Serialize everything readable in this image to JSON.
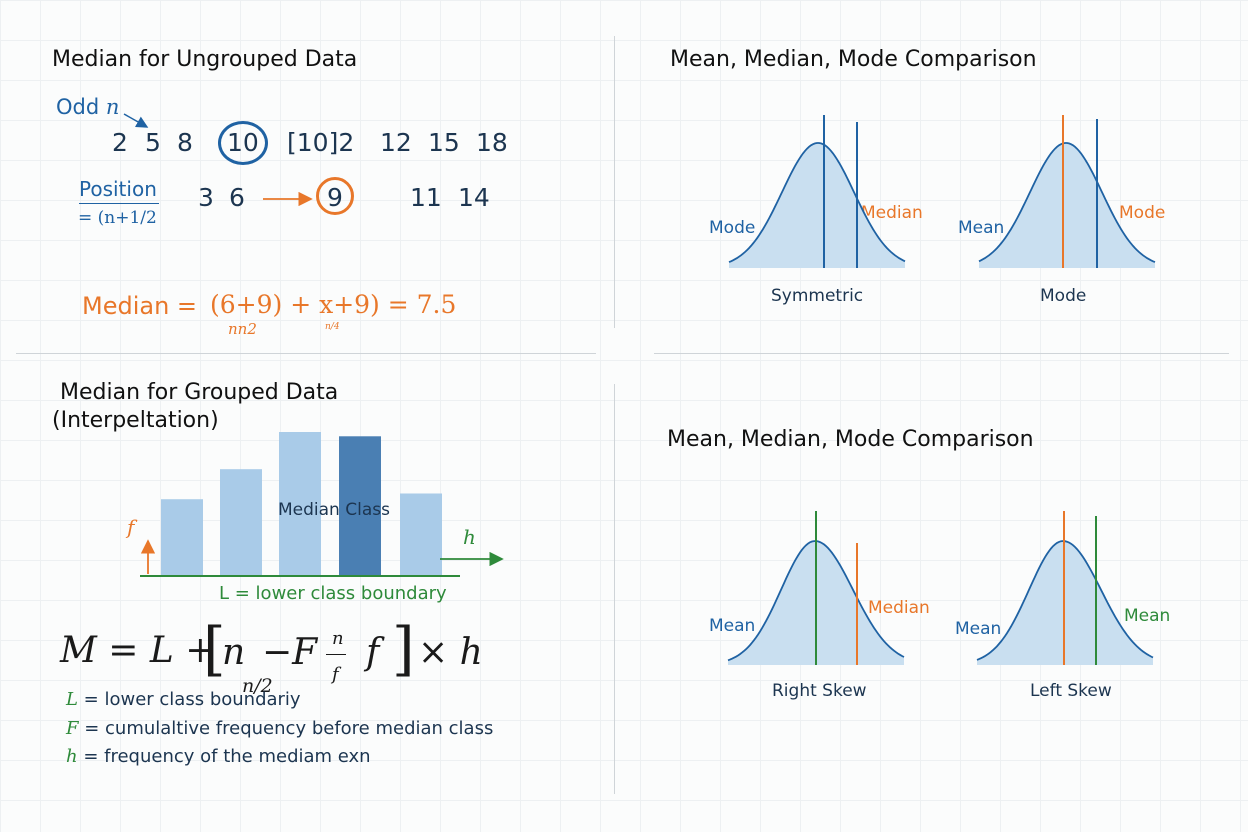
{
  "colors": {
    "blue": "#1f62a3",
    "orange": "#e8772a",
    "green": "#2e8a3a",
    "fill": "#c9dff0",
    "dark_bar": "#4a7fb3",
    "light_bar": "#a9cbe8"
  },
  "ungrouped": {
    "title": "Median for Ungrouped Data",
    "odd_label": "Odd ",
    "odd_n": "n",
    "row1": [
      "2",
      "5",
      "8",
      "10",
      "[10]2",
      "12",
      "15",
      "18"
    ],
    "position_label": "Position",
    "position_formula": "= (n+1/2",
    "row2": [
      "3",
      "6",
      "9",
      "11",
      "14"
    ],
    "median_word": "Median =",
    "median_expr": "(6+9) + x+9) = 7.5",
    "sub1": "nn2",
    "sub2": "n/4"
  },
  "grouped": {
    "title_line1": "Median for Grouped Data",
    "title_line2": "(Interpeltation)",
    "median_class_label": "Median Class",
    "f_label": "f",
    "h_label": "h",
    "lower_boundary_caption": "L = lower class boundary",
    "bars": [
      {
        "height": 0.53,
        "highlight": false
      },
      {
        "height": 0.74,
        "highlight": false
      },
      {
        "height": 1.0,
        "highlight": false
      },
      {
        "height": 0.97,
        "highlight": true
      },
      {
        "height": 0.57,
        "highlight": false
      }
    ],
    "formula": {
      "lhs": "M = L + ",
      "bracket_open": "[",
      "n": "n",
      "n_half": "n/2",
      "minus_F": "−F",
      "frac_top": "n",
      "frac_bottom": "f",
      "f": "f",
      "bracket_close": "]",
      "times_h": "× h"
    },
    "defs": [
      {
        "sym": "L",
        "text": " = lower class boundariy"
      },
      {
        "sym": "F",
        "text": " = cumulaltive frequency before median class"
      },
      {
        "sym": "h",
        "text": " = frequency of the mediam exn"
      }
    ]
  },
  "comparison_top": {
    "title": "Mean, Median, Mode Comparison",
    "left": {
      "label_left": "Mode",
      "label_right": "Median",
      "caption": "Symmetric"
    },
    "right": {
      "label_left": "Mean",
      "label_right": "Mode",
      "caption": "Mode"
    }
  },
  "comparison_bottom": {
    "title": "Mean, Median, Mode Comparison",
    "left": {
      "label_left": "Mean",
      "label_right": "Median",
      "caption": "Right Skew"
    },
    "right": {
      "label_left": "Mean",
      "label_right": "Mean",
      "caption": "Left Skew"
    }
  }
}
